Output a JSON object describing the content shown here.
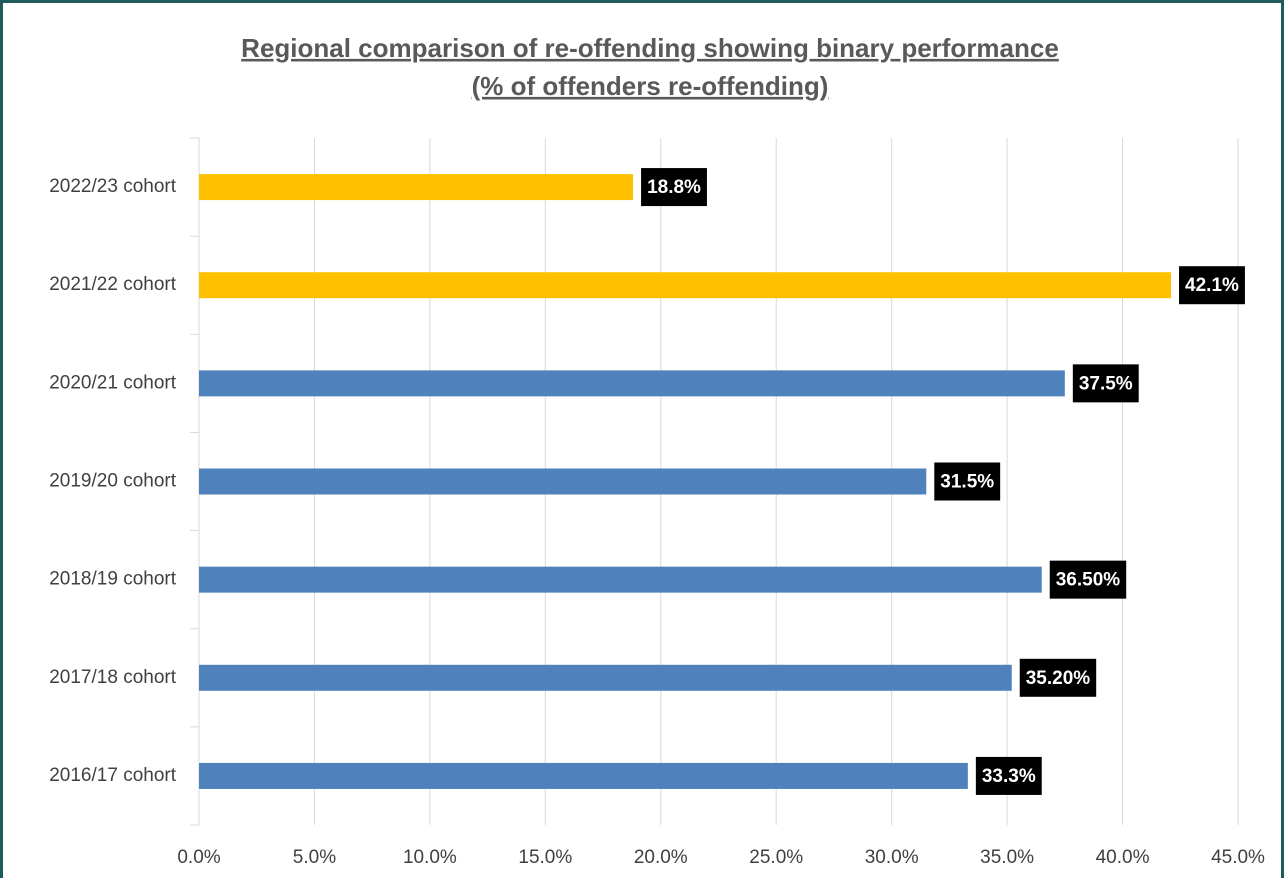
{
  "chart_data": {
    "type": "hbar",
    "title": [
      "Regional comparison of re-offending showing binary performance",
      "(% of offenders re-offending)"
    ],
    "categories": [
      "2022/23 cohort",
      "2021/22 cohort",
      "2020/21 cohort",
      "2019/20 cohort",
      "2018/19 cohort",
      "2017/18 cohort",
      "2016/17 cohort"
    ],
    "values": [
      18.8,
      42.1,
      37.5,
      31.5,
      36.5,
      35.2,
      33.3
    ],
    "value_labels": [
      "18.8%",
      "42.1%",
      "37.5%",
      "31.5%",
      "36.50%",
      "35.20%",
      "33.3%"
    ],
    "colors": [
      "#ffc000",
      "#ffc000",
      "#4f81bd",
      "#4f81bd",
      "#4f81bd",
      "#4f81bd",
      "#4f81bd"
    ],
    "xlim": [
      0,
      45
    ],
    "xticks": [
      {
        "value": 0,
        "label": "0.0%"
      },
      {
        "value": 5,
        "label": "5.0%"
      },
      {
        "value": 10,
        "label": "10.0%"
      },
      {
        "value": 15,
        "label": "15.0%"
      },
      {
        "value": 20,
        "label": "20.0%"
      },
      {
        "value": 25,
        "label": "25.0%"
      },
      {
        "value": 30,
        "label": "30.0%"
      },
      {
        "value": 35,
        "label": "35.0%"
      },
      {
        "value": 40,
        "label": "40.0%"
      },
      {
        "value": 45,
        "label": "45.0%"
      }
    ],
    "grid": true
  }
}
